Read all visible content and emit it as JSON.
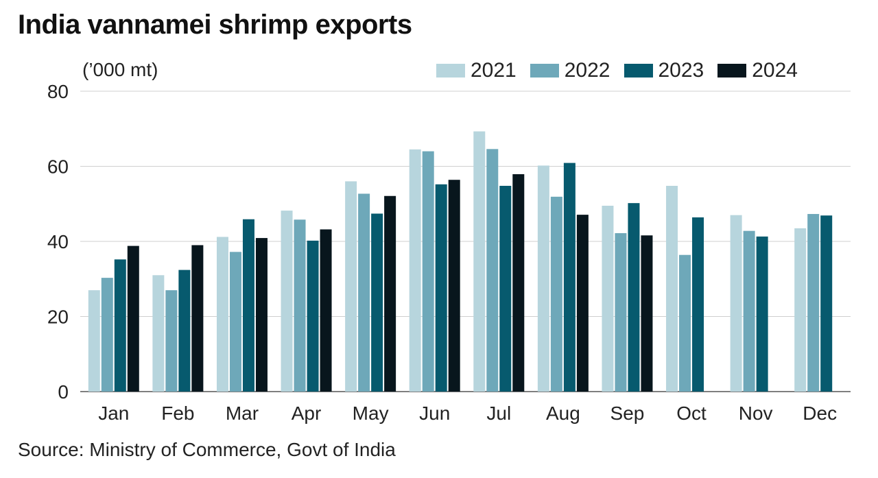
{
  "header": {
    "title": "India vannamei shrimp exports",
    "unit": "(’000 mt)"
  },
  "footer": {
    "source": "Source: Ministry of Commerce, Govt of India"
  },
  "chart_data": {
    "type": "bar",
    "title": "India vannamei shrimp exports",
    "ylabel": "(’000 mt)",
    "xlabel": "",
    "ylim": [
      0,
      80
    ],
    "yticks": [
      0,
      20,
      40,
      60,
      80
    ],
    "grid": true,
    "legend_position": "top-right",
    "categories": [
      "Jan",
      "Feb",
      "Mar",
      "Apr",
      "May",
      "Jun",
      "Jul",
      "Aug",
      "Sep",
      "Oct",
      "Nov",
      "Dec"
    ],
    "series": [
      {
        "name": "2021",
        "color": "#b7d5dd",
        "values": [
          27.0,
          31.0,
          41.2,
          48.2,
          56.0,
          64.5,
          69.3,
          60.2,
          49.5,
          54.8,
          47.0,
          43.5
        ]
      },
      {
        "name": "2022",
        "color": "#6ea8b9",
        "values": [
          30.3,
          27.0,
          37.2,
          45.8,
          52.7,
          64.0,
          64.6,
          51.9,
          42.2,
          36.4,
          42.8,
          47.3
        ]
      },
      {
        "name": "2023",
        "color": "#075a6e",
        "values": [
          35.2,
          32.4,
          45.9,
          40.2,
          47.4,
          55.2,
          54.8,
          60.9,
          50.2,
          46.4,
          41.3,
          46.9
        ]
      },
      {
        "name": "2024",
        "color": "#08161d",
        "values": [
          38.8,
          39.0,
          40.9,
          43.2,
          52.1,
          56.4,
          57.9,
          47.1,
          41.6,
          null,
          null,
          null
        ]
      }
    ]
  }
}
